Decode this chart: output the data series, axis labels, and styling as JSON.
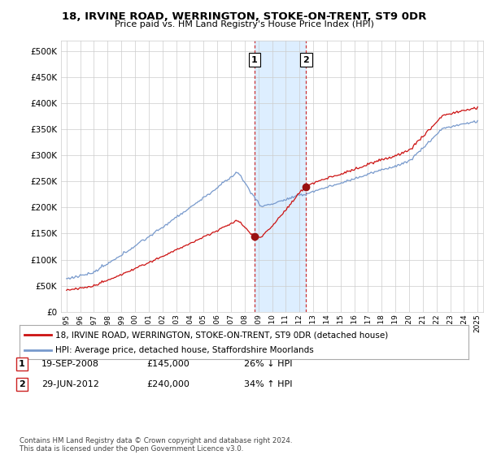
{
  "title": "18, IRVINE ROAD, WERRINGTON, STOKE-ON-TRENT, ST9 0DR",
  "subtitle": "Price paid vs. HM Land Registry's House Price Index (HPI)",
  "ylim": [
    0,
    520000
  ],
  "yticks": [
    0,
    50000,
    100000,
    150000,
    200000,
    250000,
    300000,
    350000,
    400000,
    450000,
    500000
  ],
  "ytick_labels": [
    "£0",
    "£50K",
    "£100K",
    "£150K",
    "£200K",
    "£250K",
    "£300K",
    "£350K",
    "£400K",
    "£450K",
    "£500K"
  ],
  "sale1_year": 2008.72,
  "sale1_price": 145000,
  "sale2_year": 2012.49,
  "sale2_price": 240000,
  "highlight_color": "#ddeeff",
  "hpi_line_color": "#7799cc",
  "price_line_color": "#cc1111",
  "marker_color": "#991111",
  "vline_color": "#cc3333",
  "grid_color": "#cccccc",
  "background_color": "#ffffff",
  "legend_label1": "18, IRVINE ROAD, WERRINGTON, STOKE-ON-TRENT, ST9 0DR (detached house)",
  "legend_label2": "HPI: Average price, detached house, Staffordshire Moorlands",
  "table_row1": [
    "1",
    "19-SEP-2008",
    "£145,000",
    "26% ↓ HPI"
  ],
  "table_row2": [
    "2",
    "29-JUN-2012",
    "£240,000",
    "34% ↑ HPI"
  ],
  "footer": "Contains HM Land Registry data © Crown copyright and database right 2024.\nThis data is licensed under the Open Government Licence v3.0.",
  "xmin": 1994.6,
  "xmax": 2025.4
}
